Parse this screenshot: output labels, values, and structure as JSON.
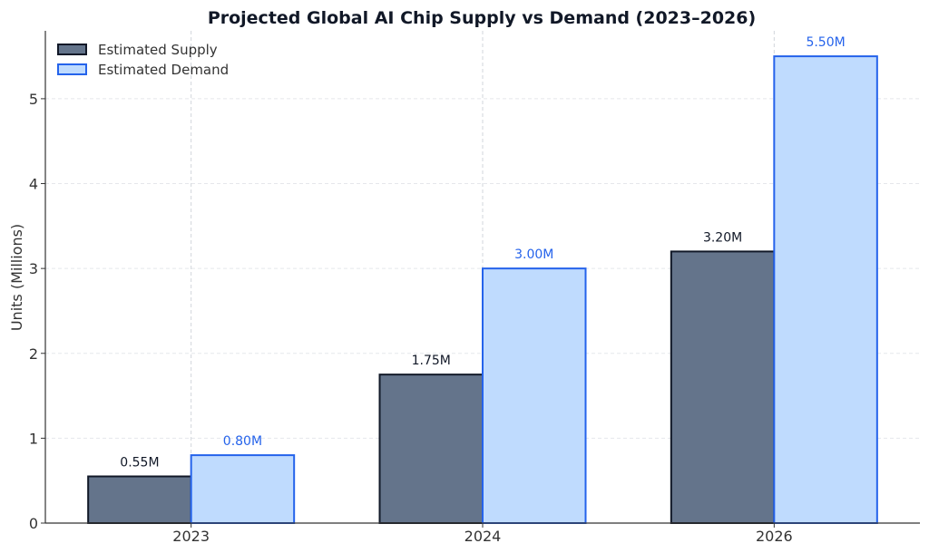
{
  "chart_data": {
    "type": "bar",
    "title": "Projected Global AI Chip Supply vs Demand (2023–2026)",
    "xlabel": "",
    "ylabel": "Units (Millions)",
    "categories": [
      "2023",
      "2024",
      "2026"
    ],
    "ylim": [
      0,
      5.8
    ],
    "yticks": [
      "0",
      "1",
      "2",
      "3",
      "4",
      "5"
    ],
    "grid": true,
    "legend_position": "top-left",
    "series": [
      {
        "name": "Estimated Supply",
        "values": [
          0.55,
          1.75,
          3.2
        ],
        "labels": [
          "0.55M",
          "1.75M",
          "3.20M"
        ],
        "fill": "#64748b",
        "stroke": "#111827",
        "label_color": "#111827"
      },
      {
        "name": "Estimated Demand",
        "values": [
          0.8,
          3.0,
          5.5
        ],
        "labels": [
          "0.80M",
          "3.00M",
          "5.50M"
        ],
        "fill": "#bfdbfe",
        "stroke": "#2563eb",
        "label_color": "#2563eb"
      }
    ]
  }
}
